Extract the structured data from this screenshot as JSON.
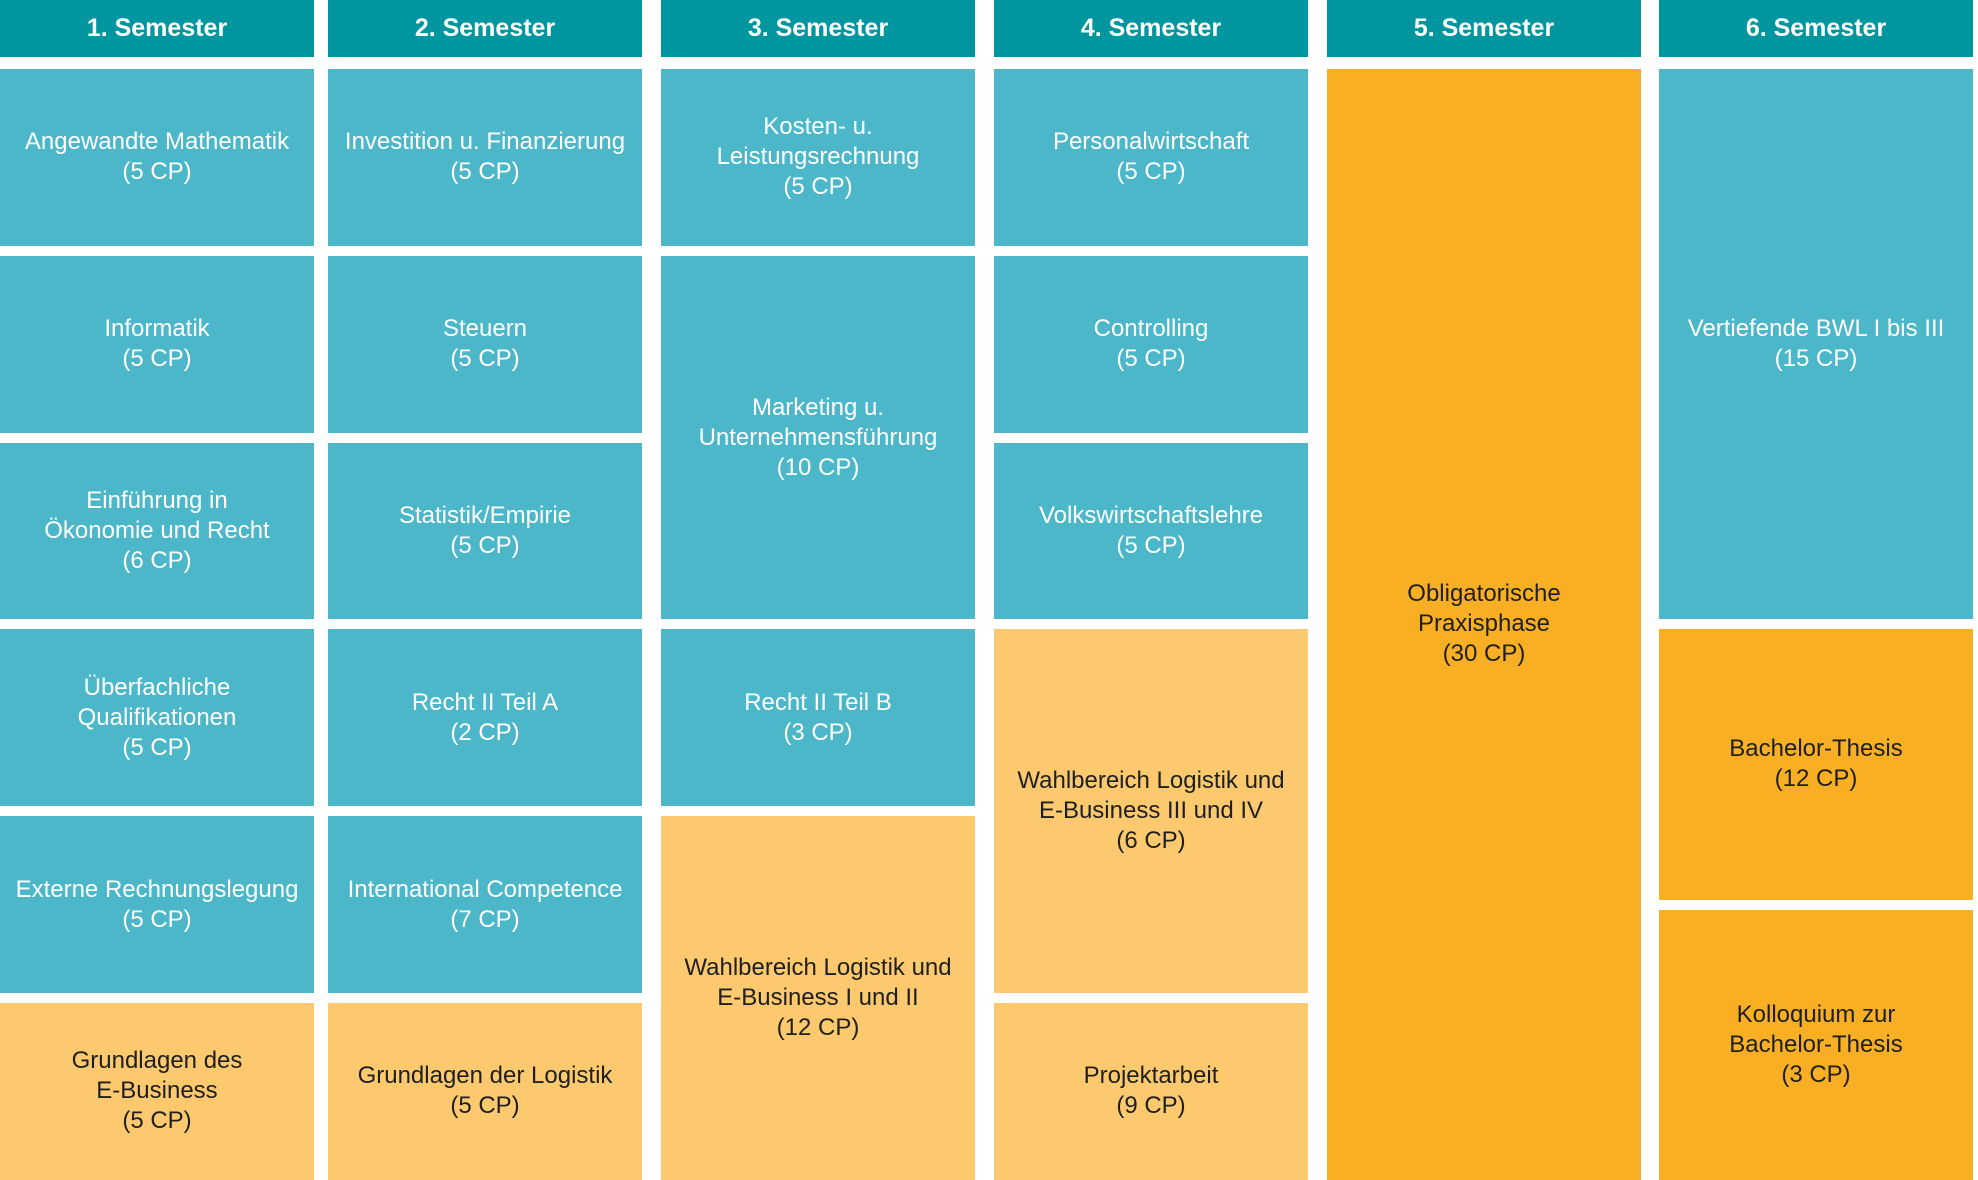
{
  "colors": {
    "header": "#00969f",
    "required": "#4bb7c8",
    "elective": "#fcc96f",
    "practice": "#f8af23",
    "text_light": "#ffffff",
    "text_dark": "#1f1f1f"
  },
  "semesters": [
    {
      "label": "1. Semester",
      "modules": [
        {
          "title": "Angewandte Mathematik",
          "cp": "(5 CP)",
          "kind": "required",
          "row_start": 1,
          "row_span": 1
        },
        {
          "title": "Informatik",
          "cp": "(5 CP)",
          "kind": "required",
          "row_start": 2,
          "row_span": 1
        },
        {
          "title": "Einführung in\nÖkonomie und Recht",
          "cp": "(6 CP)",
          "kind": "required",
          "row_start": 3,
          "row_span": 1
        },
        {
          "title": "Überfachliche\nQualifikationen",
          "cp": "(5 CP)",
          "kind": "required",
          "row_start": 4,
          "row_span": 1
        },
        {
          "title": "Externe Rechnungslegung",
          "cp": "(5 CP)",
          "kind": "required",
          "row_start": 5,
          "row_span": 1
        },
        {
          "title": "Grundlagen des\nE-Business",
          "cp": "(5 CP)",
          "kind": "elective",
          "row_start": 6,
          "row_span": 1
        }
      ]
    },
    {
      "label": "2. Semester",
      "modules": [
        {
          "title": "Investition u. Finanzierung",
          "cp": "(5 CP)",
          "kind": "required",
          "row_start": 1,
          "row_span": 1
        },
        {
          "title": "Steuern",
          "cp": "(5 CP)",
          "kind": "required",
          "row_start": 2,
          "row_span": 1
        },
        {
          "title": "Statistik/Empirie",
          "cp": "(5 CP)",
          "kind": "required",
          "row_start": 3,
          "row_span": 1
        },
        {
          "title": "Recht II Teil A",
          "cp": "(2 CP)",
          "kind": "required",
          "row_start": 4,
          "row_span": 1
        },
        {
          "title": "International Competence",
          "cp": "(7 CP)",
          "kind": "required",
          "row_start": 5,
          "row_span": 1
        },
        {
          "title": "Grundlagen der Logistik",
          "cp": "(5 CP)",
          "kind": "elective",
          "row_start": 6,
          "row_span": 1
        }
      ]
    },
    {
      "label": "3. Semester",
      "modules": [
        {
          "title": "Kosten- u.\nLeistungsrechnung",
          "cp": "(5 CP)",
          "kind": "required",
          "row_start": 1,
          "row_span": 1
        },
        {
          "title": "Marketing u.\nUnternehmensführung",
          "cp": "(10 CP)",
          "kind": "required",
          "row_start": 2,
          "row_span": 2
        },
        {
          "title": "Recht II Teil B",
          "cp": "(3 CP)",
          "kind": "required",
          "row_start": 4,
          "row_span": 1
        },
        {
          "title": "Wahlbereich Logistik und\nE-Business I und II",
          "cp": "(12 CP)",
          "kind": "elective",
          "row_start": 5,
          "row_span": 2
        }
      ]
    },
    {
      "label": "4. Semester",
      "modules": [
        {
          "title": "Personalwirtschaft",
          "cp": "(5 CP)",
          "kind": "required",
          "row_start": 1,
          "row_span": 1
        },
        {
          "title": "Controlling",
          "cp": "(5 CP)",
          "kind": "required",
          "row_start": 2,
          "row_span": 1
        },
        {
          "title": "Volkswirtschaftslehre",
          "cp": "(5 CP)",
          "kind": "required",
          "row_start": 3,
          "row_span": 1
        },
        {
          "title": "Wahlbereich Logistik und\nE-Business III und IV",
          "cp": "(6 CP)",
          "kind": "elective",
          "row_start": 4,
          "row_span": 2
        },
        {
          "title": "Projektarbeit",
          "cp": "(9 CP)",
          "kind": "elective",
          "row_start": 6,
          "row_span": 1
        }
      ]
    },
    {
      "label": "5. Semester",
      "modules": [
        {
          "title": "Obligatorische\nPraxisphase",
          "cp": "(30 CP)",
          "kind": "practice",
          "row_start": 1,
          "row_span": 6
        }
      ]
    },
    {
      "label": "6. Semester",
      "modules": [
        {
          "title": "Vertiefende BWL I bis III",
          "cp": "(15 CP)",
          "kind": "required",
          "row_start": 1,
          "row_span": 3
        },
        {
          "title": "Bachelor-Thesis",
          "cp": "(12 CP)",
          "kind": "practice",
          "row_start": 4,
          "row_span": 1.5
        },
        {
          "title": "Kolloquium zur\nBachelor-Thesis",
          "cp": "(3 CP)",
          "kind": "practice",
          "row_start": 5.5,
          "row_span": 1.5
        }
      ]
    }
  ]
}
